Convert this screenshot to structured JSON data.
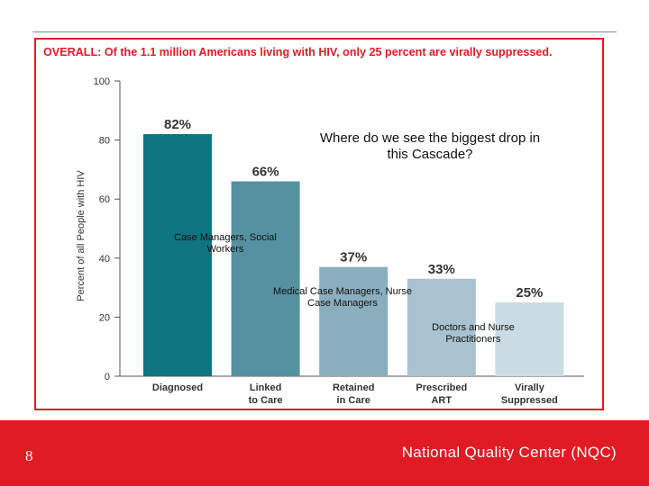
{
  "chart_data": {
    "type": "bar",
    "title": "OVERALL: Of the 1.1 million Americans living with HIV, only 25 percent are virally suppressed.",
    "ylabel": "Percent of all People with HIV",
    "xlabel": "",
    "ylim": [
      0,
      100
    ],
    "yticks": [
      0,
      20,
      40,
      60,
      80,
      100
    ],
    "grid": false,
    "categories": [
      [
        "Diagnosed"
      ],
      [
        "Linked",
        "to Care"
      ],
      [
        "Retained",
        "in Care"
      ],
      [
        "Prescribed",
        "ART"
      ],
      [
        "Virally",
        "Suppressed"
      ]
    ],
    "values": [
      82,
      66,
      37,
      33,
      25
    ],
    "value_labels": [
      "82%",
      "66%",
      "37%",
      "33%",
      "25%"
    ],
    "colors": [
      "#0e7480",
      "#5591a0",
      "#8aaebd",
      "#a9c2cf",
      "#cbdbe4"
    ]
  },
  "annotations": {
    "question": "Where do we see the biggest drop in this Cascade?",
    "case_managers": "Case Managers, Social Workers",
    "medical_case_managers": "Medical Case Managers, Nurse Case Managers",
    "doctors": "Doctors and Nurse Practitioners"
  },
  "footer": {
    "page_number": "8",
    "org_name": "National Quality Center (NQC)",
    "color": "#e01b24"
  }
}
